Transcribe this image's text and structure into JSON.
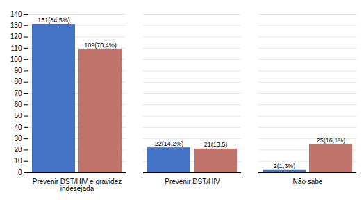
{
  "chart_data": {
    "type": "bar",
    "categories": [
      "Prevenir DST/HIV e gravidez\nindesejada",
      "Prevenir DST/HIV",
      "Não sabe"
    ],
    "series": [
      {
        "color": "#4472C4",
        "values": [
          131,
          22,
          2
        ],
        "value_labels": [
          "131(84,5%)",
          "22(14,2%)",
          "2(1,3%)"
        ]
      },
      {
        "color": "#C0736A",
        "values": [
          109,
          21,
          25
        ],
        "value_labels": [
          "109(70,4%)",
          "21(13,5)",
          "25(16,1%)"
        ]
      }
    ],
    "ylim": [
      0,
      140
    ],
    "yticks": [
      0,
      10,
      20,
      30,
      40,
      50,
      60,
      70,
      80,
      90,
      100,
      110,
      120,
      130,
      140
    ],
    "grid": true,
    "data_labels": true
  }
}
